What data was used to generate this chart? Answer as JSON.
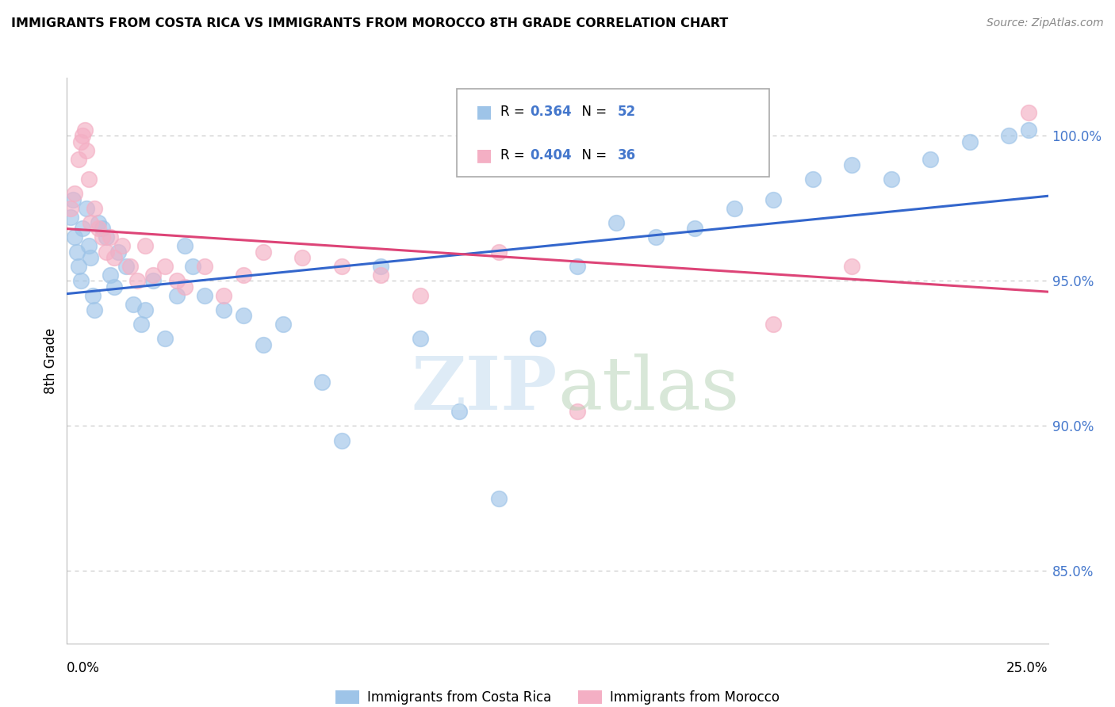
{
  "title": "IMMIGRANTS FROM COSTA RICA VS IMMIGRANTS FROM MOROCCO 8TH GRADE CORRELATION CHART",
  "source": "Source: ZipAtlas.com",
  "ylabel": "8th Grade",
  "ytick_vals": [
    85.0,
    90.0,
    95.0,
    100.0
  ],
  "ytick_labels": [
    "85.0%",
    "90.0%",
    "95.0%",
    "100.0%"
  ],
  "xlim": [
    0.0,
    25.0
  ],
  "ylim": [
    82.5,
    102.0
  ],
  "legend_blue_label": "Immigrants from Costa Rica",
  "legend_pink_label": "Immigrants from Morocco",
  "R_blue": 0.364,
  "N_blue": 52,
  "R_pink": 0.404,
  "N_pink": 36,
  "blue_color": "#9ec4e8",
  "pink_color": "#f4afc4",
  "trend_blue": "#3366cc",
  "trend_pink": "#dd4477",
  "scatter_blue_x": [
    0.1,
    0.15,
    0.2,
    0.25,
    0.3,
    0.35,
    0.4,
    0.5,
    0.55,
    0.6,
    0.65,
    0.7,
    0.8,
    0.9,
    1.0,
    1.1,
    1.2,
    1.3,
    1.5,
    1.7,
    1.9,
    2.0,
    2.2,
    2.5,
    2.8,
    3.0,
    3.2,
    3.5,
    4.0,
    4.5,
    5.0,
    5.5,
    6.5,
    7.0,
    8.0,
    9.0,
    10.0,
    11.0,
    12.0,
    13.0,
    14.0,
    15.0,
    16.0,
    17.0,
    18.0,
    19.0,
    20.0,
    21.0,
    22.0,
    23.0,
    24.0,
    24.5
  ],
  "scatter_blue_y": [
    97.2,
    97.8,
    96.5,
    96.0,
    95.5,
    95.0,
    96.8,
    97.5,
    96.2,
    95.8,
    94.5,
    94.0,
    97.0,
    96.8,
    96.5,
    95.2,
    94.8,
    96.0,
    95.5,
    94.2,
    93.5,
    94.0,
    95.0,
    93.0,
    94.5,
    96.2,
    95.5,
    94.5,
    94.0,
    93.8,
    92.8,
    93.5,
    91.5,
    89.5,
    95.5,
    93.0,
    90.5,
    87.5,
    93.0,
    95.5,
    97.0,
    96.5,
    96.8,
    97.5,
    97.8,
    98.5,
    99.0,
    98.5,
    99.2,
    99.8,
    100.0,
    100.2
  ],
  "scatter_pink_x": [
    0.1,
    0.2,
    0.3,
    0.35,
    0.4,
    0.45,
    0.5,
    0.55,
    0.6,
    0.7,
    0.8,
    0.9,
    1.0,
    1.1,
    1.2,
    1.4,
    1.6,
    1.8,
    2.0,
    2.2,
    2.5,
    2.8,
    3.0,
    3.5,
    4.0,
    4.5,
    5.0,
    6.0,
    7.0,
    8.0,
    9.0,
    11.0,
    13.0,
    18.0,
    20.0,
    24.5
  ],
  "scatter_pink_y": [
    97.5,
    98.0,
    99.2,
    99.8,
    100.0,
    100.2,
    99.5,
    98.5,
    97.0,
    97.5,
    96.8,
    96.5,
    96.0,
    96.5,
    95.8,
    96.2,
    95.5,
    95.0,
    96.2,
    95.2,
    95.5,
    95.0,
    94.8,
    95.5,
    94.5,
    95.2,
    96.0,
    95.8,
    95.5,
    95.2,
    94.5,
    96.0,
    90.5,
    93.5,
    95.5,
    100.8
  ]
}
